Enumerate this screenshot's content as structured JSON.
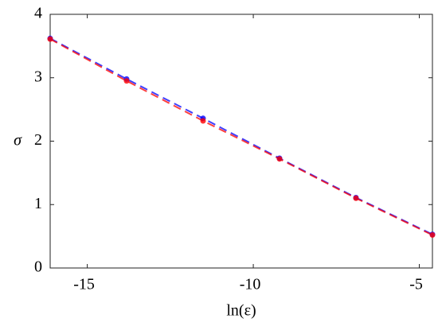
{
  "chart_data": {
    "type": "line",
    "x_label": "ln(ε)",
    "y_label": "σ",
    "x": [
      -16.118,
      -13.816,
      -11.513,
      -9.21,
      -6.908,
      -4.605
    ],
    "series": [
      {
        "name": "blue",
        "color": "#0000ff",
        "values": [
          3.62,
          2.98,
          2.36,
          1.73,
          1.11,
          0.53
        ]
      },
      {
        "name": "red",
        "color": "#ff0000",
        "values": [
          3.61,
          2.95,
          2.32,
          1.72,
          1.1,
          0.52
        ]
      }
    ],
    "xlim": [
      -16.118,
      -4.605
    ],
    "xticks": [
      -15,
      -10,
      -5
    ],
    "ylim": [
      0,
      4
    ],
    "yticks": [
      0,
      1,
      2,
      3,
      4
    ]
  }
}
